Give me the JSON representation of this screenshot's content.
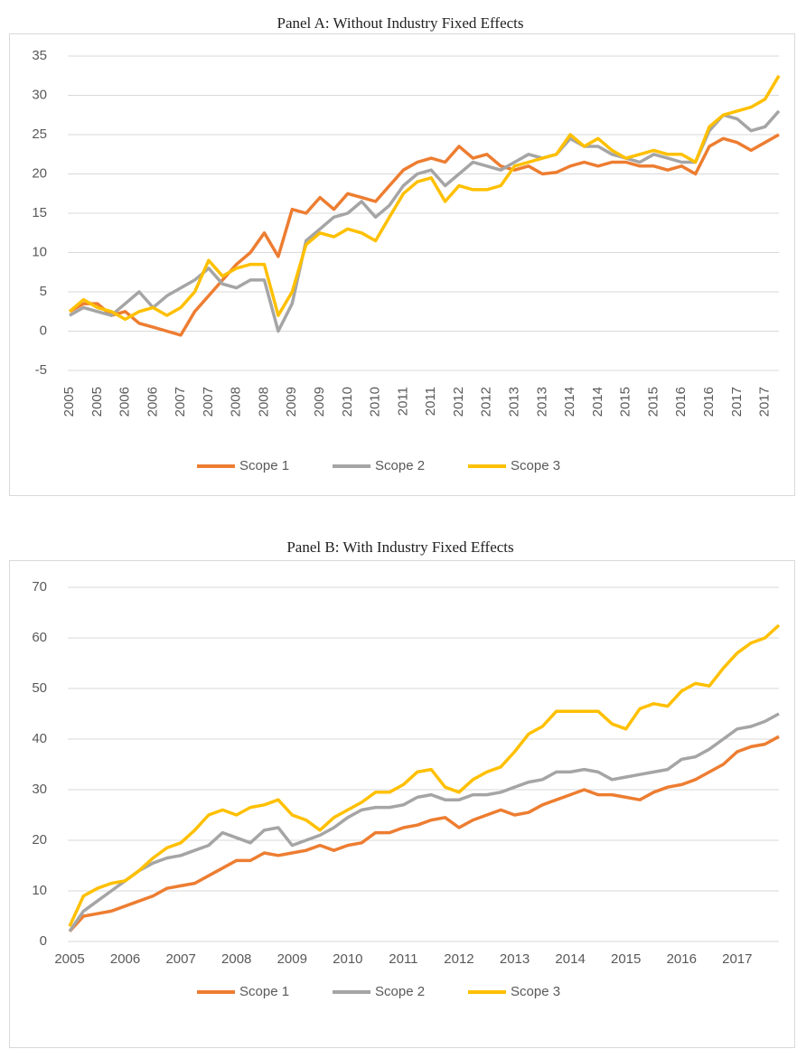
{
  "chart_data": [
    {
      "type": "line",
      "title": "Panel A: Without Industry Fixed Effects",
      "categories": [
        "2005",
        null,
        "2005",
        null,
        "2006",
        null,
        "2006",
        null,
        "2007",
        null,
        "2007",
        null,
        "2008",
        null,
        "2008",
        null,
        "2009",
        null,
        "2009",
        null,
        "2010",
        null,
        "2010",
        null,
        "2011",
        null,
        "2011",
        null,
        "2012",
        null,
        "2012",
        null,
        "2013",
        null,
        "2013",
        null,
        "2014",
        null,
        "2014",
        null,
        "2015",
        null,
        "2015",
        null,
        "2016",
        null,
        "2016",
        null,
        "2017",
        null,
        "2017",
        null
      ],
      "series": [
        {
          "name": "Scope 1",
          "color": "#ed7d31",
          "values": [
            2.5,
            3.5,
            3.5,
            2,
            2.5,
            1,
            0.5,
            0,
            -0.5,
            2.5,
            4.5,
            6.5,
            8.5,
            10,
            12.5,
            9.5,
            15.5,
            15,
            17,
            15.5,
            17.5,
            17,
            16.5,
            18.5,
            20.5,
            21.5,
            22,
            21.5,
            23.5,
            22,
            22.5,
            21,
            20.5,
            21,
            20,
            20.2,
            21,
            21.5,
            21,
            21.5,
            21.5,
            21,
            21,
            20.5,
            21,
            20,
            23.5,
            24.5,
            24,
            23,
            24,
            25
          ]
        },
        {
          "name": "Scope 2",
          "color": "#a5a5a5",
          "values": [
            2,
            3,
            2.5,
            2,
            3.5,
            5,
            3,
            4.5,
            5.5,
            6.5,
            8,
            6,
            5.5,
            6.5,
            6.5,
            0,
            3.5,
            11.5,
            13,
            14.5,
            15,
            16.5,
            14.5,
            16,
            18.5,
            20,
            20.5,
            18.5,
            20,
            21.5,
            21,
            20.5,
            21.5,
            22.5,
            22,
            22.5,
            24.5,
            23.5,
            23.5,
            22.5,
            22,
            21.5,
            22.5,
            22,
            21.5,
            21.5,
            25.5,
            27.5,
            27,
            25.5,
            26,
            28
          ]
        },
        {
          "name": "Scope 3",
          "color": "#ffc000",
          "values": [
            2.5,
            4,
            3,
            2.5,
            1.5,
            2.5,
            3,
            2,
            3,
            5,
            9,
            7,
            8,
            8.5,
            8.5,
            2,
            5,
            11,
            12.5,
            12,
            13,
            12.5,
            11.5,
            14.5,
            17.5,
            19,
            19.5,
            16.5,
            18.5,
            18,
            18,
            18.5,
            21,
            21.5,
            22,
            22.5,
            25,
            23.5,
            24.5,
            23,
            22,
            22.5,
            23,
            22.5,
            22.5,
            21.5,
            26,
            27.5,
            28,
            28.5,
            29.5,
            32.5
          ]
        }
      ],
      "ylim": [
        -5,
        35
      ],
      "yticks": [
        -5,
        0,
        5,
        10,
        15,
        20,
        25,
        30,
        35
      ],
      "grid": true,
      "legend": "bottom",
      "x_label_rotation": 90
    },
    {
      "type": "line",
      "title": "Panel B: With Industry Fixed Effects",
      "categories": [
        "2005",
        null,
        null,
        null,
        "2006",
        null,
        null,
        null,
        "2007",
        null,
        null,
        null,
        "2008",
        null,
        null,
        null,
        "2009",
        null,
        null,
        null,
        "2010",
        null,
        null,
        null,
        "2011",
        null,
        null,
        null,
        "2012",
        null,
        null,
        null,
        "2013",
        null,
        null,
        null,
        "2014",
        null,
        null,
        null,
        "2015",
        null,
        null,
        null,
        "2016",
        null,
        null,
        null,
        "2017",
        null,
        null,
        null
      ],
      "series": [
        {
          "name": "Scope 1",
          "color": "#ed7d31",
          "values": [
            2,
            5,
            5.5,
            6,
            7,
            8,
            9,
            10.5,
            11,
            11.5,
            13,
            14.5,
            16,
            16,
            17.5,
            17,
            17.5,
            18,
            19,
            18,
            19,
            19.5,
            21.5,
            21.5,
            22.5,
            23,
            24,
            24.5,
            22.5,
            24,
            25,
            26,
            25,
            25.5,
            27,
            28,
            29,
            30,
            29,
            29,
            28.5,
            28,
            29.5,
            30.5,
            31,
            32,
            33.5,
            35,
            37.5,
            38.5,
            39,
            40.5
          ]
        },
        {
          "name": "Scope 2",
          "color": "#a5a5a5",
          "values": [
            2,
            6,
            8,
            10,
            12,
            14,
            15.5,
            16.5,
            17,
            18,
            19,
            21.5,
            20.5,
            19.5,
            22,
            22.5,
            19,
            20,
            21,
            22.5,
            24.5,
            26,
            26.5,
            26.5,
            27,
            28.5,
            29,
            28,
            28,
            29,
            29,
            29.5,
            30.5,
            31.5,
            32,
            33.5,
            33.5,
            34,
            33.5,
            32,
            32.5,
            33,
            33.5,
            34,
            36,
            36.5,
            38,
            40,
            42,
            42.5,
            43.5,
            45
          ]
        },
        {
          "name": "Scope 3",
          "color": "#ffc000",
          "values": [
            3,
            9,
            10.5,
            11.5,
            12,
            14,
            16.5,
            18.5,
            19.5,
            22,
            25,
            26,
            25,
            26.5,
            27,
            28,
            25,
            24,
            22,
            24.5,
            26,
            27.5,
            29.5,
            29.5,
            31,
            33.5,
            34,
            30.5,
            29.5,
            32,
            33.5,
            34.5,
            37.5,
            41,
            42.5,
            45.5,
            45.5,
            45.5,
            45.5,
            43,
            42,
            46,
            47,
            46.5,
            49.5,
            51,
            50.5,
            54,
            57,
            59,
            60,
            62.5
          ]
        }
      ],
      "ylim": [
        0,
        70
      ],
      "yticks": [
        0,
        10,
        20,
        30,
        40,
        50,
        60,
        70
      ],
      "grid": true,
      "legend": "bottom",
      "x_label_rotation": 0
    }
  ]
}
